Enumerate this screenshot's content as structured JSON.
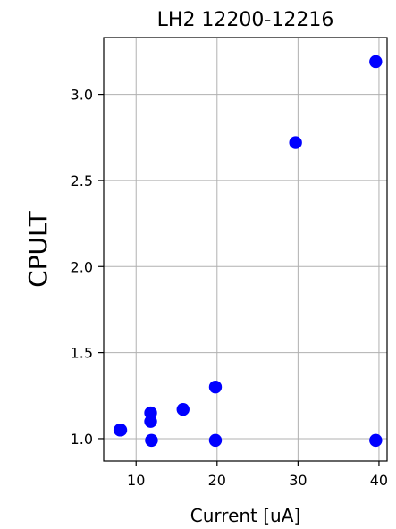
{
  "chart_data": {
    "type": "scatter",
    "title": "LH2 12200-12216",
    "xlabel": "Current [uA]",
    "ylabel": "CPULT",
    "xlim": [
      6,
      41
    ],
    "ylim": [
      0.87,
      3.33
    ],
    "xticks": [
      10,
      20,
      30,
      40
    ],
    "yticks": [
      1.0,
      1.5,
      2.0,
      2.5,
      3.0
    ],
    "xtick_labels": [
      "10",
      "20",
      "30",
      "40"
    ],
    "ytick_labels": [
      "1.0",
      "1.5",
      "2.0",
      "2.5",
      "3.0"
    ],
    "grid": true,
    "marker_color": "#0000ff",
    "series": [
      {
        "x": [
          8.0,
          8.1,
          11.8,
          11.8,
          11.9,
          15.8,
          19.8,
          19.8,
          29.7,
          39.6,
          39.6
        ],
        "y": [
          1.05,
          1.05,
          1.15,
          1.1,
          0.99,
          1.17,
          1.3,
          0.99,
          2.72,
          3.19,
          0.99
        ]
      }
    ]
  }
}
